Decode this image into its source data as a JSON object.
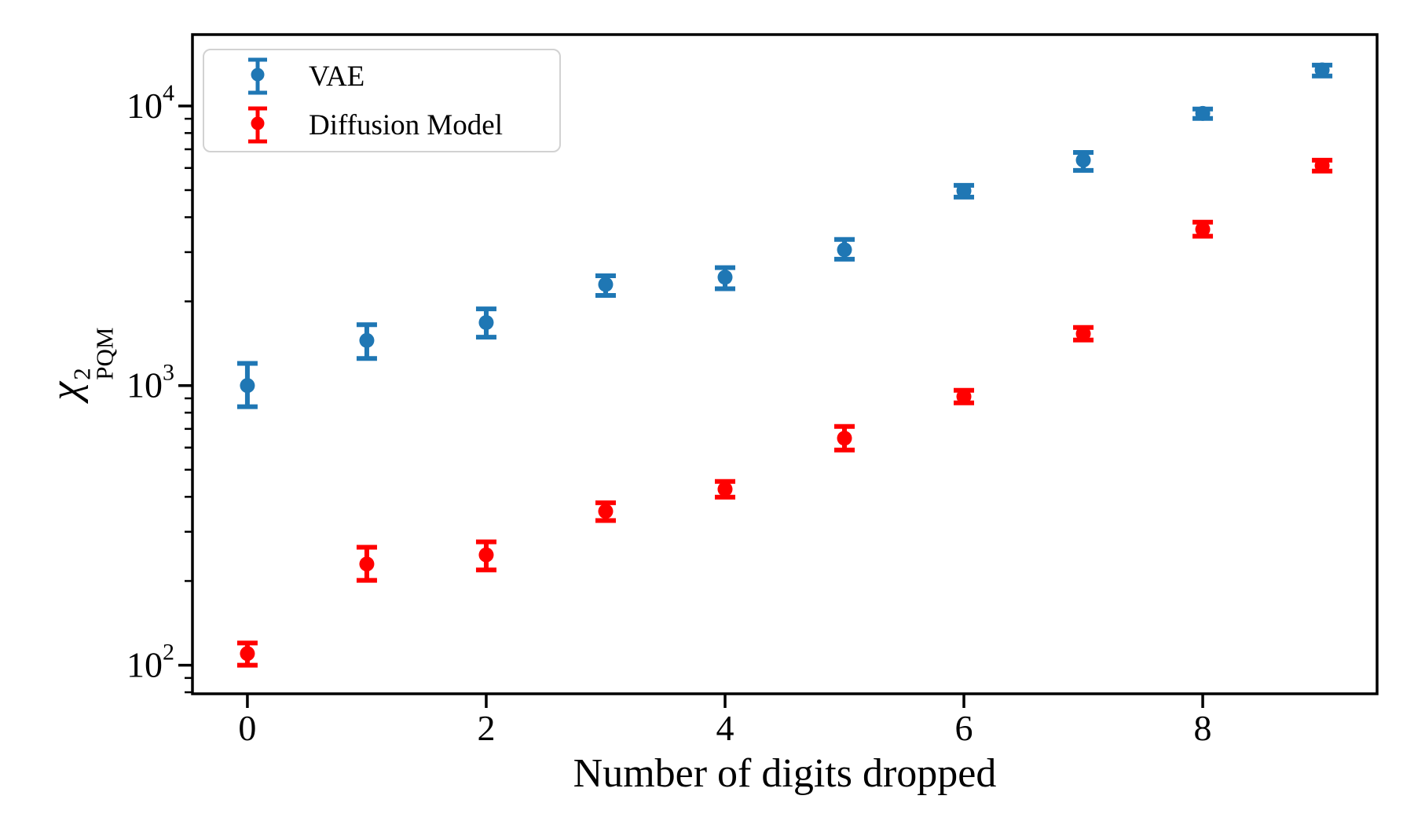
{
  "figure": {
    "xlabel": "Number of digits dropped",
    "ylabel": {
      "symbol": "χ",
      "sup": "2",
      "sub": "PQM"
    },
    "background": "#ffffff",
    "axis_color": "#000000"
  },
  "legend": {
    "position": "upper left",
    "entries": [
      {
        "label": "VAE",
        "color": "#1f77b4"
      },
      {
        "label": "Diffusion Model",
        "color": "#ff0000"
      }
    ]
  },
  "chart_data": {
    "type": "scatter",
    "title": "",
    "xlabel": "Number of digits dropped",
    "ylabel": "chi^2_PQM",
    "yscale": "log",
    "grid": false,
    "legend_position": "upper left",
    "x": [
      0,
      1,
      2,
      3,
      4,
      5,
      6,
      7,
      8,
      9
    ],
    "series": [
      {
        "name": "VAE",
        "color": "#1f77b4",
        "values": [
          1000,
          1450,
          1680,
          2300,
          2440,
          3060,
          4970,
          6400,
          9400,
          13450
        ],
        "err_lo": [
          840,
          1250,
          1490,
          2100,
          2220,
          2830,
          4720,
          5880,
          9020,
          12790
        ],
        "err_hi": [
          1200,
          1650,
          1880,
          2470,
          2640,
          3330,
          5200,
          6820,
          9750,
          14000
        ]
      },
      {
        "name": "Diffusion Model",
        "color": "#ff0000",
        "values": [
          110,
          230,
          248,
          355,
          426,
          648,
          913,
          1532,
          3620,
          6120
        ],
        "err_lo": [
          100,
          201,
          219,
          329,
          399,
          588,
          867,
          1455,
          3420,
          5850
        ],
        "err_hi": [
          120,
          264,
          276,
          381,
          454,
          714,
          962,
          1614,
          3840,
          6400
        ]
      }
    ],
    "xlim": [
      -0.46,
      9.46
    ],
    "ylim": [
      79,
      18000
    ],
    "xticks": [
      0,
      2,
      4,
      6,
      8
    ],
    "yticks": [
      {
        "value": 100,
        "base": "10",
        "exp": "2"
      },
      {
        "value": 1000,
        "base": "10",
        "exp": "3"
      },
      {
        "value": 10000,
        "base": "10",
        "exp": "4"
      }
    ],
    "yminorticks": [
      80,
      90,
      200,
      300,
      400,
      500,
      600,
      700,
      800,
      900,
      2000,
      3000,
      4000,
      5000,
      6000,
      7000,
      8000,
      9000
    ]
  }
}
